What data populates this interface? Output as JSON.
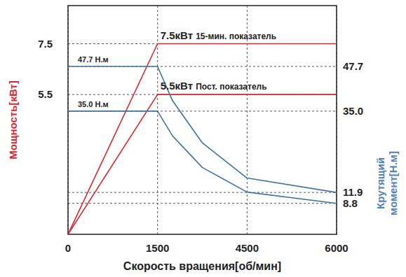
{
  "chart_data": {
    "type": "line",
    "x_label": "Скорость вращения[об/мин]",
    "y_label": "Мощность[кВт]",
    "y2_label": "Крутящий момент[Н.м]",
    "x": [
      0,
      1500,
      2000,
      3000,
      4500,
      6000
    ],
    "xlim": [
      0,
      6000
    ],
    "xticks": [
      0,
      1500,
      4500,
      6000
    ],
    "ylim": [
      0,
      9
    ],
    "yticks": [
      5.5,
      7.5
    ],
    "y2lim": [
      0,
      65
    ],
    "y2ticks": [
      8.8,
      11.9,
      {
        "value": 35,
        "label": "35.0"
      },
      47.7
    ],
    "grid": true,
    "series": [
      {
        "name": "7.5кВт 15-мин. показатель",
        "color": "#e0262c",
        "values": [
          0,
          7.5,
          7.5,
          7.5,
          7.5,
          7.5
        ]
      },
      {
        "name": "5.5кВт Пост. показатель",
        "color": "#e0262c",
        "values": [
          0,
          5.5,
          5.5,
          5.5,
          5.5,
          5.5
        ]
      },
      {
        "name": "47.7 Н.м",
        "color": "#3f73a8",
        "axis": "y2",
        "values": [
          47.7,
          47.7,
          38,
          26,
          16,
          11.9
        ]
      },
      {
        "name": "35.0 Н.м",
        "color": "#3f73a8",
        "axis": "y2",
        "values": [
          35,
          35,
          28,
          19,
          12,
          8.8
        ]
      }
    ]
  }
}
